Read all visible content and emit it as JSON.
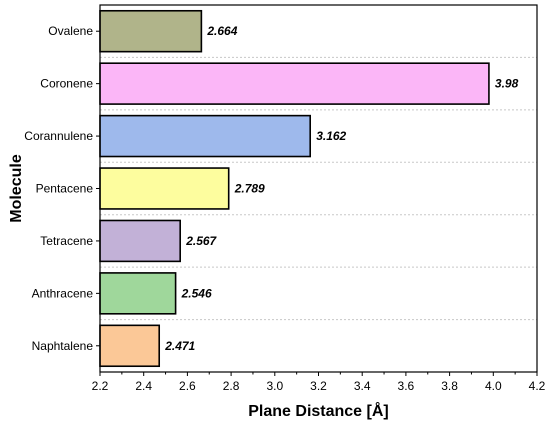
{
  "chart_data": {
    "type": "bar",
    "orientation": "horizontal",
    "categories": [
      "Ovalene",
      "Coronene",
      "Corannulene",
      "Pentacene",
      "Tetracene",
      "Anthracene",
      "Naphtalene"
    ],
    "values": [
      2.664,
      3.98,
      3.162,
      2.789,
      2.567,
      2.546,
      2.471
    ],
    "value_labels": [
      "2.664",
      "3.98",
      "3.162",
      "2.789",
      "2.567",
      "2.546",
      "2.471"
    ],
    "colors": [
      "#b0b48a",
      "#fbb6f7",
      "#9eb9ec",
      "#fdfd9e",
      "#c2b1d7",
      "#9fd79b",
      "#fbc897"
    ],
    "xlabel": "Plane Distance [Å]",
    "ylabel": "Molecule",
    "xlim": [
      2.2,
      4.2
    ],
    "xticks": [
      "2.2",
      "2.4",
      "2.6",
      "2.8",
      "3.0",
      "3.2",
      "3.4",
      "3.6",
      "3.8",
      "4.0",
      "4.2"
    ],
    "grid": "dashed separators between categories",
    "title": ""
  }
}
